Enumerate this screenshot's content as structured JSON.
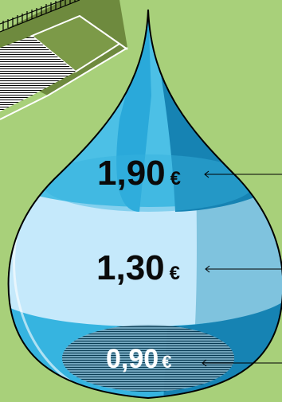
{
  "prices": [
    {
      "amount": "1,90",
      "currency": "€"
    },
    {
      "amount": "1,30",
      "currency": "€"
    },
    {
      "amount": "0,90",
      "currency": "€"
    }
  ],
  "colors": {
    "background": "#a8d07a",
    "drop_light": "#c5e9fb",
    "drop_mid": "#4cc0e6",
    "drop_dark": "#1683b3",
    "field_dark": "#6e8a3e"
  }
}
